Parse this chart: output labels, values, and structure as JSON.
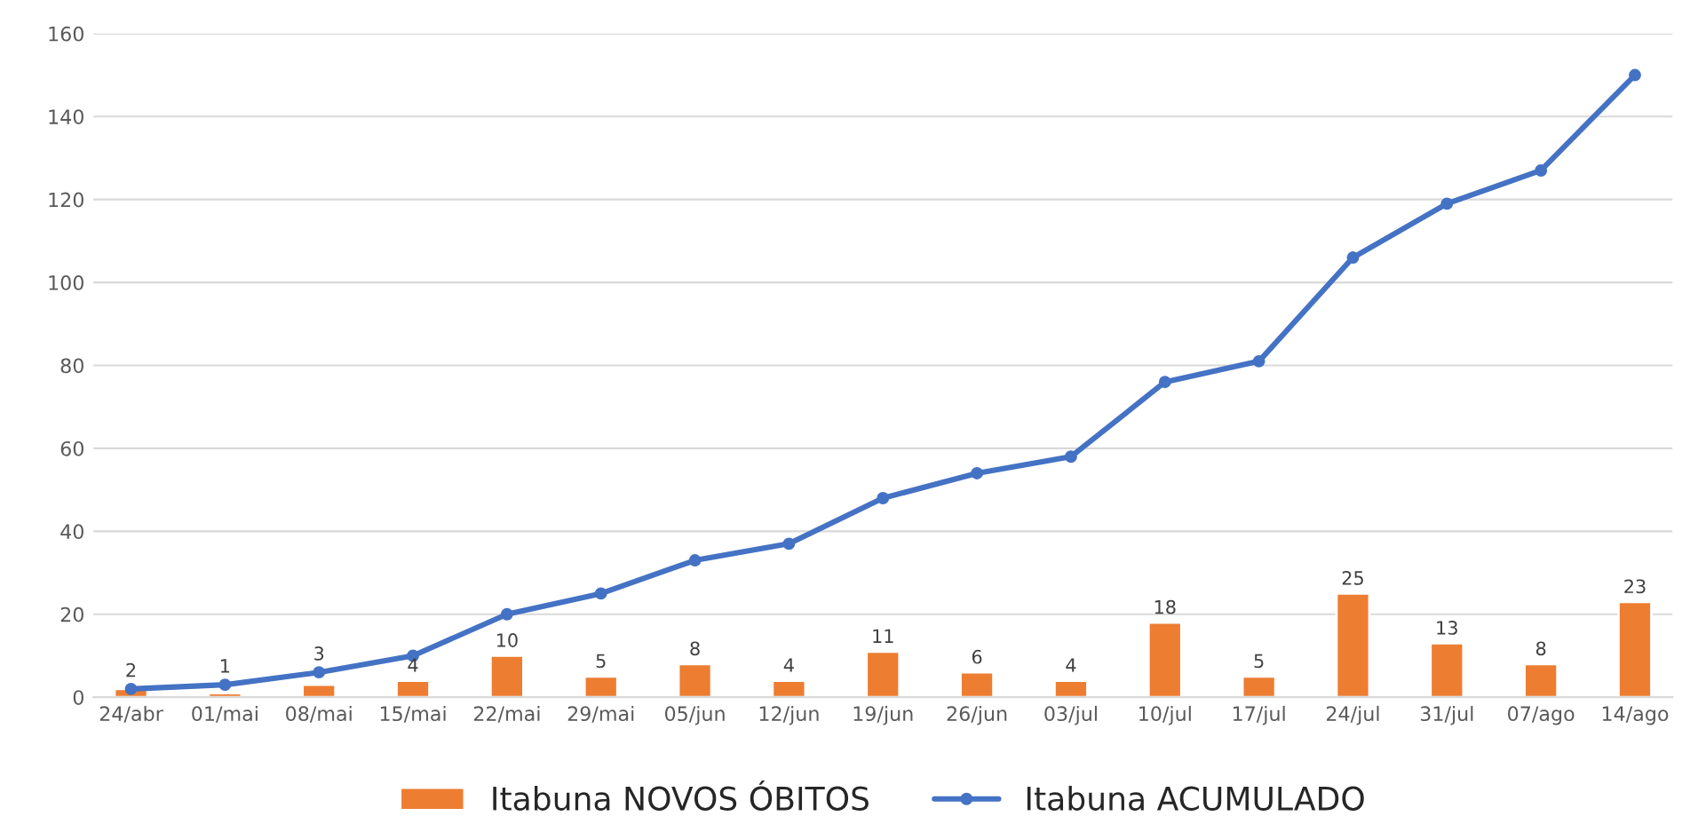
{
  "chart_data": {
    "type": "bar",
    "categories": [
      "24/abr",
      "01/mai",
      "08/mai",
      "15/mai",
      "22/mai",
      "29/mai",
      "05/jun",
      "12/jun",
      "19/jun",
      "26/jun",
      "03/jul",
      "10/jul",
      "17/jul",
      "24/jul",
      "31/jul",
      "07/ago",
      "14/ago"
    ],
    "series": [
      {
        "name": "Itabuna NOVOS ÓBITOS",
        "color": "#ed7d31",
        "values": [
          2,
          1,
          3,
          4,
          10,
          5,
          8,
          4,
          11,
          6,
          4,
          18,
          5,
          25,
          13,
          8,
          23
        ],
        "value_labels": [
          "2",
          "1",
          "3",
          "4",
          "10",
          "5",
          "8",
          "4",
          "11",
          "6",
          "4",
          "18",
          "5",
          "25",
          "13",
          "8",
          "23"
        ]
      },
      {
        "name": "Itabuna ACUMULADO",
        "type": "line",
        "color": "#4472c4",
        "marker": "circle",
        "values": [
          2,
          3,
          6,
          10,
          20,
          25,
          33,
          37,
          48,
          54,
          58,
          76,
          81,
          106,
          119,
          127,
          150
        ]
      }
    ],
    "ylim": [
      0,
      160
    ],
    "yticks": [
      0,
      20,
      40,
      60,
      80,
      100,
      120,
      140,
      160
    ],
    "grid": "y",
    "legend": "bottom"
  }
}
